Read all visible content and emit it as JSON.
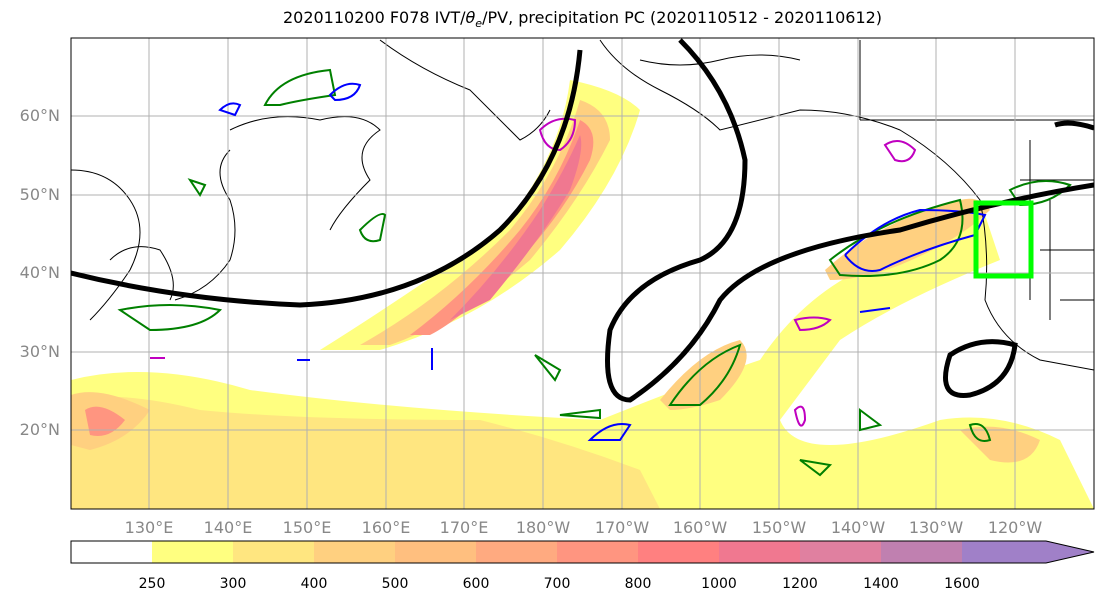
{
  "title": "2020110200 F078 IVT/θe/PV, precipitation PC (2020110512 - 2020110612)",
  "lat_labels": [
    "60°N",
    "50°N",
    "40°N",
    "30°N",
    "20°N"
  ],
  "lon_labels": [
    "130°E",
    "140°E",
    "150°E",
    "160°E",
    "170°E",
    "180°W",
    "170°W",
    "160°W",
    "150°W",
    "140°W",
    "130°W",
    "120°W"
  ],
  "colorbar": {
    "ticks": [
      "250",
      "300",
      "400",
      "500",
      "600",
      "700",
      "800",
      "1000",
      "1200",
      "1400",
      "1600"
    ],
    "colors": [
      "#ffff80",
      "#ffe680",
      "#ffd080",
      "#ffbf7f",
      "#ffaa80",
      "#ff9580",
      "#ff8080",
      "#f07890",
      "#e080a0",
      "#c080b0",
      "#a080c8"
    ]
  },
  "legend_colors": {
    "ivt_contour": "#008000",
    "pv_contour": "#0000ff",
    "theta_contour": "#c000c0",
    "jet_line": "#000000",
    "target_box": "#00ff00"
  }
}
